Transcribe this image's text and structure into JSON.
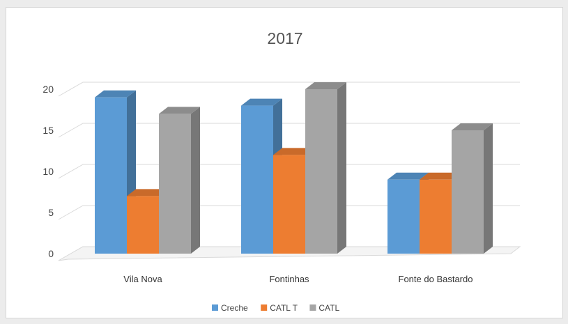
{
  "chart_data": {
    "type": "bar",
    "title": "2017",
    "categories": [
      "Vila Nova",
      "Fontinhas",
      "Fonte do Bastardo"
    ],
    "series": [
      {
        "name": "Creche",
        "values": [
          19,
          18,
          9
        ],
        "color": "#5b9bd5"
      },
      {
        "name": "CATL T",
        "values": [
          7,
          12,
          9
        ],
        "color": "#ed7d31"
      },
      {
        "name": "CATL",
        "values": [
          17,
          20,
          15
        ],
        "color": "#a5a5a5"
      }
    ],
    "ylim": [
      0,
      20
    ],
    "yticks": [
      0,
      5,
      10,
      15,
      20
    ],
    "grid": true,
    "legend_position": "bottom"
  }
}
